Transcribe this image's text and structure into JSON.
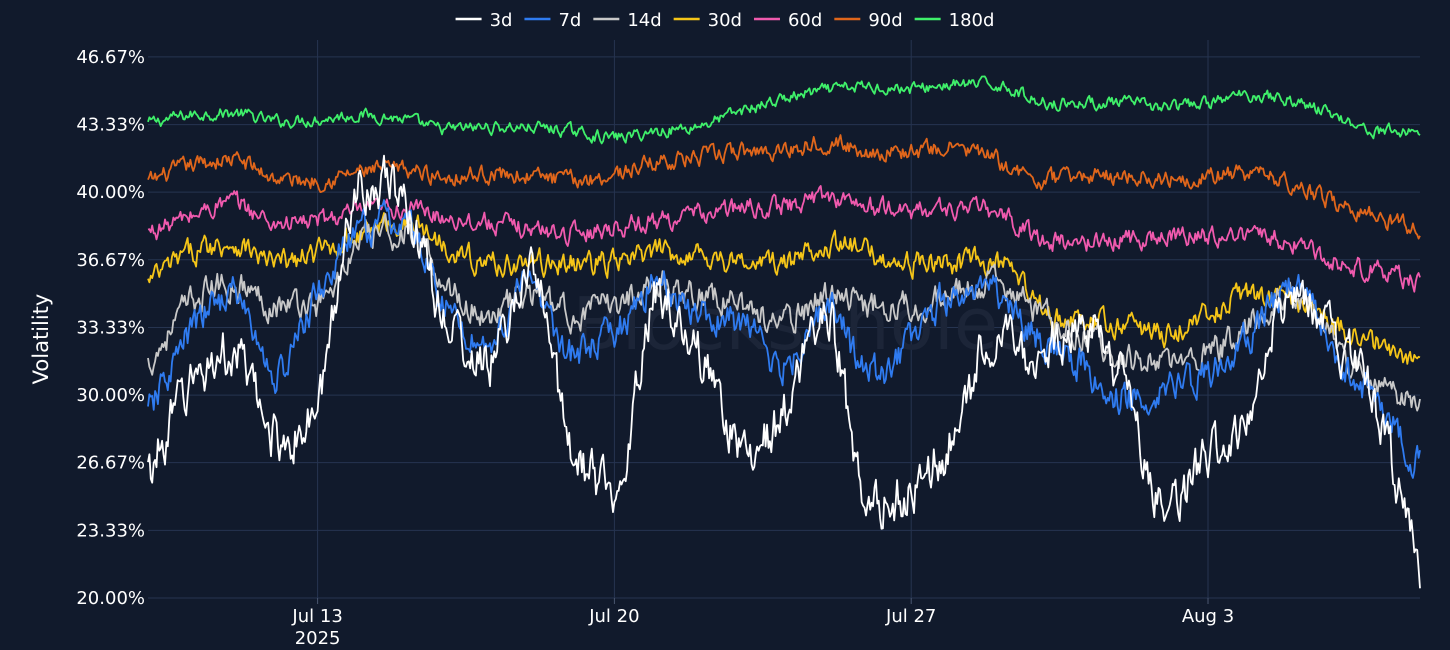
{
  "chart_data": {
    "type": "line",
    "title": "",
    "xlabel": "",
    "ylabel": "Volatility",
    "watermark": "Blockscholes",
    "legend_position": "top-center",
    "grid": true,
    "x_range": [
      "2025-07-09T00:00",
      "2025-08-08T00:00"
    ],
    "y_range": [
      20.0,
      47.5
    ],
    "y_ticks": [
      "20.00%",
      "23.33%",
      "26.67%",
      "30.00%",
      "33.33%",
      "36.67%",
      "40.00%",
      "43.33%",
      "46.67%"
    ],
    "x_ticks": [
      {
        "date": "2025-07-13",
        "label": "Jul 13",
        "sublabel": "2025"
      },
      {
        "date": "2025-07-20",
        "label": "Jul 20",
        "sublabel": ""
      },
      {
        "date": "2025-07-27",
        "label": "Jul 27",
        "sublabel": ""
      },
      {
        "date": "2025-08-03",
        "label": "Aug 3",
        "sublabel": ""
      }
    ],
    "x": [
      "2025-07-09",
      "2025-07-10",
      "2025-07-11",
      "2025-07-12",
      "2025-07-13",
      "2025-07-14",
      "2025-07-15",
      "2025-07-16",
      "2025-07-17",
      "2025-07-18",
      "2025-07-19",
      "2025-07-20",
      "2025-07-21",
      "2025-07-22",
      "2025-07-23",
      "2025-07-24",
      "2025-07-25",
      "2025-07-26",
      "2025-07-27",
      "2025-07-28",
      "2025-07-29",
      "2025-07-30",
      "2025-07-31",
      "2025-08-01",
      "2025-08-02",
      "2025-08-03",
      "2025-08-04",
      "2025-08-05",
      "2025-08-06",
      "2025-08-07",
      "2025-08-08"
    ],
    "series": [
      {
        "name": "3d",
        "color": "#ffffff",
        "noise": 1.0,
        "values": [
          26.0,
          30.5,
          32.0,
          28.0,
          29.5,
          40.5,
          39.5,
          34.0,
          31.5,
          36.0,
          27.5,
          25.5,
          35.0,
          32.0,
          27.5,
          29.0,
          34.0,
          24.5,
          25.5,
          28.0,
          33.0,
          32.0,
          33.5,
          30.5,
          24.5,
          27.0,
          28.5,
          35.5,
          33.0,
          29.0,
          21.5
        ]
      },
      {
        "name": "7d",
        "color": "#2f7bf0",
        "noise": 0.7,
        "values": [
          29.0,
          33.0,
          35.0,
          31.0,
          35.0,
          38.0,
          38.5,
          34.5,
          32.5,
          35.5,
          32.0,
          33.0,
          35.5,
          34.0,
          33.5,
          31.5,
          34.5,
          31.0,
          32.5,
          35.0,
          35.0,
          33.0,
          31.5,
          30.0,
          30.5,
          31.0,
          33.0,
          35.5,
          32.0,
          29.5,
          26.5
        ]
      },
      {
        "name": "14d",
        "color": "#c8c8c8",
        "noise": 0.6,
        "values": [
          31.5,
          34.5,
          35.5,
          34.5,
          34.5,
          37.5,
          38.0,
          35.5,
          34.0,
          35.0,
          34.0,
          34.5,
          35.5,
          35.0,
          34.5,
          33.5,
          35.0,
          34.5,
          34.5,
          35.0,
          35.5,
          34.0,
          33.0,
          32.0,
          31.5,
          32.0,
          33.5,
          35.0,
          32.5,
          30.5,
          29.5
        ]
      },
      {
        "name": "30d",
        "color": "#f5c518",
        "noise": 0.5,
        "values": [
          35.5,
          37.0,
          37.5,
          36.5,
          37.0,
          38.0,
          38.5,
          37.5,
          36.5,
          36.5,
          36.5,
          36.5,
          37.0,
          37.0,
          36.5,
          36.5,
          37.5,
          37.0,
          36.5,
          36.5,
          36.5,
          34.5,
          33.5,
          33.5,
          33.0,
          34.0,
          35.0,
          34.5,
          33.5,
          32.5,
          31.5
        ]
      },
      {
        "name": "60d",
        "color": "#f05aae",
        "noise": 0.4,
        "values": [
          38.0,
          38.8,
          39.5,
          38.5,
          38.6,
          39.0,
          39.2,
          38.8,
          38.5,
          38.2,
          38.0,
          38.3,
          38.6,
          38.9,
          39.2,
          39.3,
          39.8,
          39.3,
          39.1,
          39.2,
          39.0,
          37.8,
          37.5,
          37.7,
          37.8,
          37.9,
          37.9,
          37.5,
          36.6,
          36.1,
          35.5
        ]
      },
      {
        "name": "90d",
        "color": "#e0661b",
        "noise": 0.35,
        "values": [
          40.5,
          41.3,
          41.6,
          40.7,
          40.6,
          41.0,
          41.1,
          40.8,
          40.9,
          40.8,
          40.6,
          40.9,
          41.5,
          41.7,
          42.0,
          42.1,
          42.5,
          42.0,
          42.0,
          42.2,
          41.6,
          40.6,
          40.8,
          40.8,
          40.7,
          40.8,
          40.9,
          40.4,
          39.5,
          38.8,
          38.2
        ]
      },
      {
        "name": "180d",
        "color": "#3ff06a",
        "noise": 0.25,
        "values": [
          43.4,
          43.8,
          43.9,
          43.5,
          43.6,
          43.8,
          43.6,
          43.1,
          43.2,
          43.2,
          43.0,
          42.7,
          43.0,
          43.3,
          44.0,
          44.6,
          45.0,
          45.2,
          45.1,
          45.3,
          45.3,
          44.5,
          44.4,
          44.4,
          44.2,
          44.4,
          44.8,
          44.5,
          43.8,
          43.0,
          43.0
        ]
      }
    ]
  }
}
